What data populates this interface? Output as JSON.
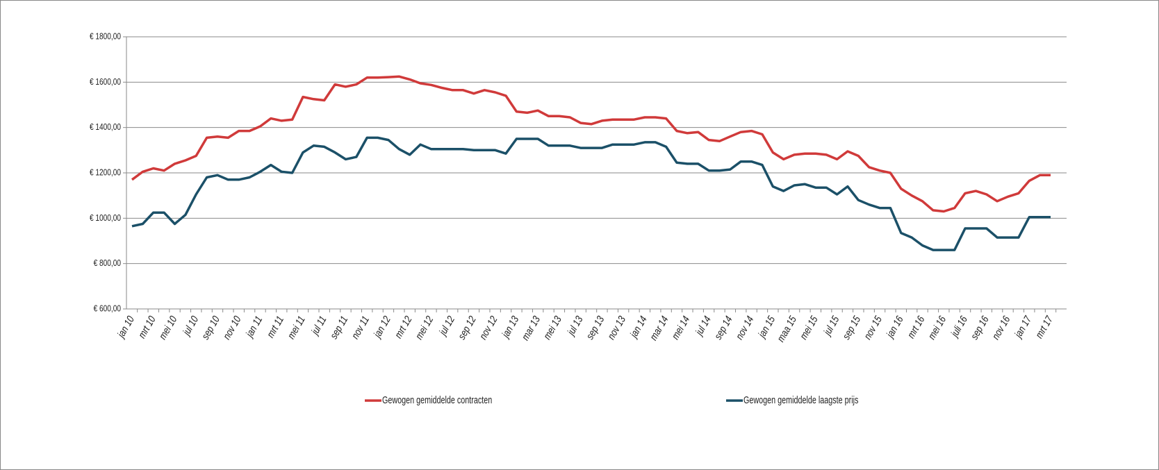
{
  "chart_data": {
    "type": "line",
    "categories": [
      "jan 10",
      null,
      "mrt 10",
      null,
      "mei 10",
      null,
      "jul 10",
      null,
      "sep 10",
      null,
      "nov 10",
      null,
      "jan 11",
      null,
      "mrt 11",
      null,
      "mei 11",
      null,
      "jul 11",
      null,
      "sep 11",
      null,
      "nov 11",
      null,
      "jan 12",
      null,
      "mrt 12",
      null,
      "mei 12",
      null,
      "jul 12",
      null,
      "sep 12",
      null,
      "nov 12",
      null,
      "jan 13",
      null,
      "mar 13",
      null,
      "mei 13",
      null,
      "jul 13",
      null,
      "sep 13",
      null,
      "nov 13",
      null,
      "jan 14",
      null,
      "mar 14",
      null,
      "mei 14",
      null,
      "jul 14",
      null,
      "sep 14",
      null,
      "nov 14",
      null,
      "jan 15",
      null,
      "maa 15",
      null,
      "mei 15",
      null,
      "jul 15",
      null,
      "sep 15",
      null,
      "nov 15",
      null,
      "jan 16",
      null,
      "mrt 16",
      null,
      "mei 16",
      null,
      "juli 16",
      null,
      "sep 16",
      null,
      "nov 16",
      null,
      "jan 17",
      null,
      "mrt 17"
    ],
    "series": [
      {
        "name": "Gewogen gemiddelde contracten",
        "color": "#d03a3a",
        "values": [
          1170,
          1205,
          1220,
          1210,
          1240,
          1255,
          1275,
          1355,
          1360,
          1355,
          1385,
          1385,
          1405,
          1440,
          1430,
          1435,
          1535,
          1525,
          1520,
          1590,
          1580,
          1590,
          1620,
          1620,
          1622,
          1625,
          1612,
          1595,
          1588,
          1575,
          1565,
          1565,
          1550,
          1565,
          1555,
          1540,
          1470,
          1465,
          1475,
          1450,
          1450,
          1445,
          1420,
          1415,
          1430,
          1435,
          1435,
          1435,
          1445,
          1445,
          1440,
          1385,
          1375,
          1380,
          1345,
          1340,
          1360,
          1380,
          1385,
          1370,
          1290,
          1260,
          1280,
          1285,
          1285,
          1280,
          1260,
          1295,
          1275,
          1225,
          1210,
          1200,
          1130,
          1100,
          1075,
          1035,
          1030,
          1045,
          1110,
          1120,
          1105,
          1075,
          1095,
          1110,
          1165,
          1190,
          1190
        ]
      },
      {
        "name": "Gewogen gemiddelde laagste prijs",
        "color": "#1b5068",
        "values": [
          965,
          975,
          1025,
          1025,
          975,
          1015,
          1105,
          1180,
          1190,
          1170,
          1170,
          1180,
          1205,
          1235,
          1205,
          1200,
          1290,
          1320,
          1315,
          1290,
          1260,
          1270,
          1355,
          1355,
          1345,
          1305,
          1280,
          1325,
          1305,
          1305,
          1305,
          1305,
          1300,
          1300,
          1300,
          1285,
          1350,
          1350,
          1350,
          1320,
          1320,
          1320,
          1310,
          1310,
          1310,
          1325,
          1325,
          1325,
          1335,
          1335,
          1315,
          1245,
          1240,
          1240,
          1210,
          1210,
          1215,
          1250,
          1250,
          1235,
          1140,
          1120,
          1145,
          1150,
          1135,
          1135,
          1105,
          1140,
          1080,
          1060,
          1045,
          1045,
          935,
          915,
          880,
          860,
          860,
          860,
          955,
          955,
          955,
          915,
          915,
          915,
          1005,
          1005,
          1005
        ]
      }
    ],
    "ylim": [
      600,
      1800
    ],
    "yticks": [
      {
        "value": 600,
        "label": "€ 600,00"
      },
      {
        "value": 800,
        "label": "€ 800,00"
      },
      {
        "value": 1000,
        "label": "€ 1000,00"
      },
      {
        "value": 1200,
        "label": "€ 1200,00"
      },
      {
        "value": 1400,
        "label": "€ 1400,00"
      },
      {
        "value": 1600,
        "label": "€ 1600,00"
      },
      {
        "value": 1800,
        "label": "€ 1800,00"
      }
    ],
    "grid": true,
    "legend": "bottom"
  }
}
